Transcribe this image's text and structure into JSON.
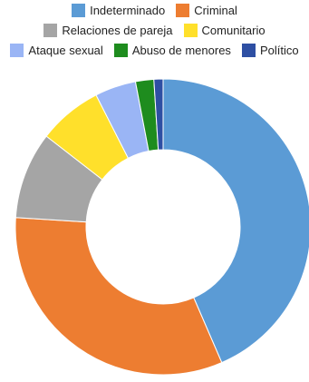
{
  "chart_data": {
    "type": "pie",
    "style": "donut",
    "legend_position": "top",
    "categories": [
      "Indeterminado",
      "Criminal",
      "Relaciones de pareja",
      "Comunitario",
      "Ataque sexual",
      "Abuso de menores",
      "Político"
    ],
    "values": [
      43.5,
      32.5,
      9.5,
      7.0,
      4.5,
      2.0,
      1.0
    ],
    "colors": [
      "#5B9BD5",
      "#ED7D31",
      "#A5A5A5",
      "#FFE02B",
      "#9AB5F5",
      "#1E8C1E",
      "#2E4FA3"
    ]
  }
}
